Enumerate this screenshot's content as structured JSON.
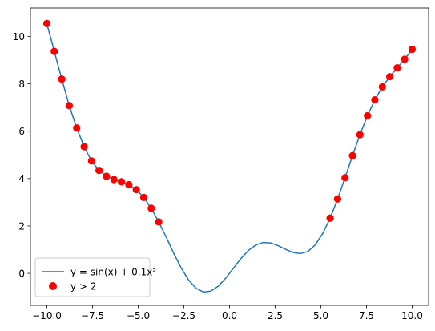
{
  "chart_data": {
    "type": "line",
    "title": "",
    "xlabel": "",
    "ylabel": "",
    "xlim": [
      -10.9,
      10.9
    ],
    "ylim": [
      -1.35,
      11.2
    ],
    "grid": false,
    "legend_position": "lower-left",
    "xticks": [
      -10.0,
      -7.5,
      -5.0,
      -2.5,
      0.0,
      2.5,
      5.0,
      7.5,
      10.0
    ],
    "xtick_labels": [
      "−10.0",
      "−7.5",
      "−5.0",
      "−2.5",
      "0.0",
      "2.5",
      "5.0",
      "7.5",
      "10.0"
    ],
    "yticks": [
      0,
      2,
      4,
      6,
      8,
      10
    ],
    "ytick_labels": [
      "0",
      "2",
      "4",
      "6",
      "8",
      "10"
    ],
    "series": [
      {
        "name": "y = sin(x) + 0.1x²",
        "kind": "line",
        "color": "#1f77b4",
        "x": [
          -10.0,
          -9.592,
          -9.184,
          -8.776,
          -8.367,
          -7.959,
          -7.551,
          -7.143,
          -6.735,
          -6.327,
          -5.918,
          -5.51,
          -5.102,
          -4.694,
          -4.286,
          -3.878,
          -3.469,
          -3.061,
          -2.653,
          -2.245,
          -1.837,
          -1.429,
          -1.02,
          -0.612,
          -0.204,
          0.204,
          0.612,
          1.02,
          1.429,
          1.837,
          2.245,
          2.653,
          3.061,
          3.469,
          3.878,
          4.286,
          4.694,
          5.102,
          5.51,
          5.918,
          6.327,
          6.735,
          7.143,
          7.551,
          7.959,
          8.367,
          8.776,
          9.184,
          9.592,
          10.0
        ],
        "y": [
          10.544,
          9.369,
          8.201,
          7.082,
          6.136,
          5.345,
          4.742,
          4.345,
          4.098,
          3.96,
          3.864,
          3.742,
          3.532,
          3.203,
          2.749,
          2.174,
          1.531,
          0.858,
          0.237,
          -0.278,
          -0.627,
          -0.786,
          -0.748,
          -0.537,
          -0.199,
          0.207,
          0.612,
          0.956,
          1.194,
          1.302,
          1.285,
          1.172,
          1.017,
          0.884,
          0.834,
          0.922,
          1.203,
          1.681,
          2.329,
          3.139,
          4.036,
          4.967,
          5.853,
          6.653,
          7.325,
          7.871,
          8.302,
          8.676,
          9.041,
          9.456
        ]
      },
      {
        "name": "y > 2",
        "kind": "scatter",
        "color": "#ff0000",
        "x": [
          -10.0,
          -9.592,
          -9.184,
          -8.776,
          -8.367,
          -7.959,
          -7.551,
          -7.143,
          -6.735,
          -6.327,
          -5.918,
          -5.51,
          -5.102,
          -4.694,
          -4.286,
          -3.878,
          5.51,
          5.918,
          6.327,
          6.735,
          7.143,
          7.551,
          7.959,
          8.367,
          8.776,
          9.184,
          9.592,
          10.0
        ],
        "y": [
          10.544,
          9.369,
          8.201,
          7.082,
          6.136,
          5.345,
          4.742,
          4.345,
          4.098,
          3.96,
          3.864,
          3.742,
          3.532,
          3.203,
          2.749,
          2.174,
          2.329,
          3.139,
          4.036,
          4.967,
          5.853,
          6.653,
          7.325,
          7.871,
          8.302,
          8.676,
          9.041,
          9.456
        ]
      }
    ]
  }
}
